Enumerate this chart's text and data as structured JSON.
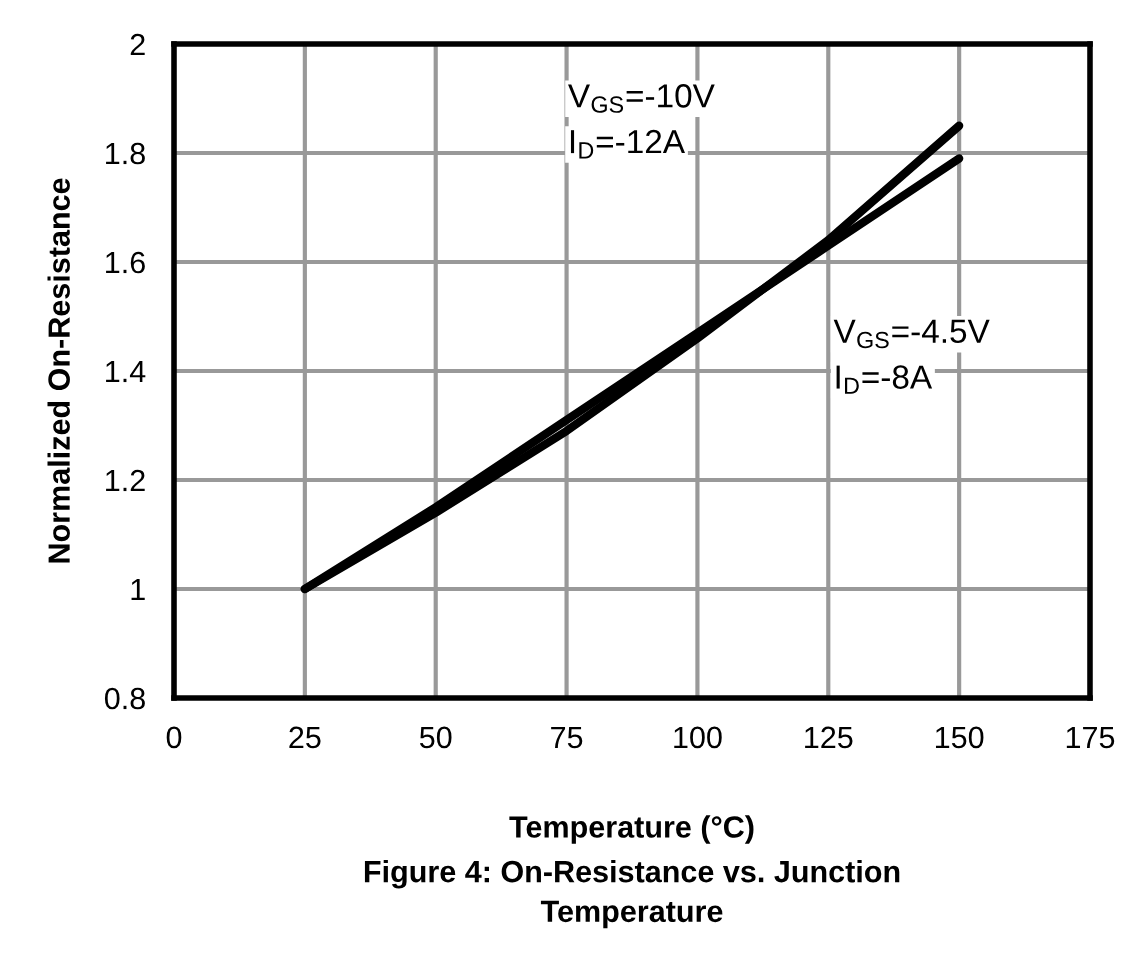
{
  "chart_data": {
    "type": "line",
    "title": "Figure 4: On-Resistance vs. Junction\nTemperature",
    "xlabel": "Temperature (°C)",
    "ylabel": "Normalized On-Resistance",
    "x": [
      25,
      50,
      75,
      100,
      125,
      150
    ],
    "series": [
      {
        "color": "#000000",
        "values": [
          1.0,
          1.14,
          1.29,
          1.46,
          1.64,
          1.85
        ]
      },
      {
        "color": "#000000",
        "values": [
          1.0,
          1.15,
          1.31,
          1.47,
          1.63,
          1.79
        ]
      }
    ],
    "annotations": [
      "V$_{GS}$=-10V",
      "I$_{D}$=-12A",
      "V$_{GS}$=-4.5V",
      "I$_{D}$=-8A"
    ],
    "xlim": [
      0,
      175
    ],
    "xticks": [
      0,
      25,
      50,
      75,
      100,
      125,
      150,
      175
    ],
    "ylim": [
      0.8,
      2
    ],
    "yticks": [
      0.8,
      1,
      1.2,
      1.4,
      1.6,
      1.8,
      2
    ],
    "grid": true,
    "legend": false,
    "marker": "none",
    "line_style": "solid"
  }
}
